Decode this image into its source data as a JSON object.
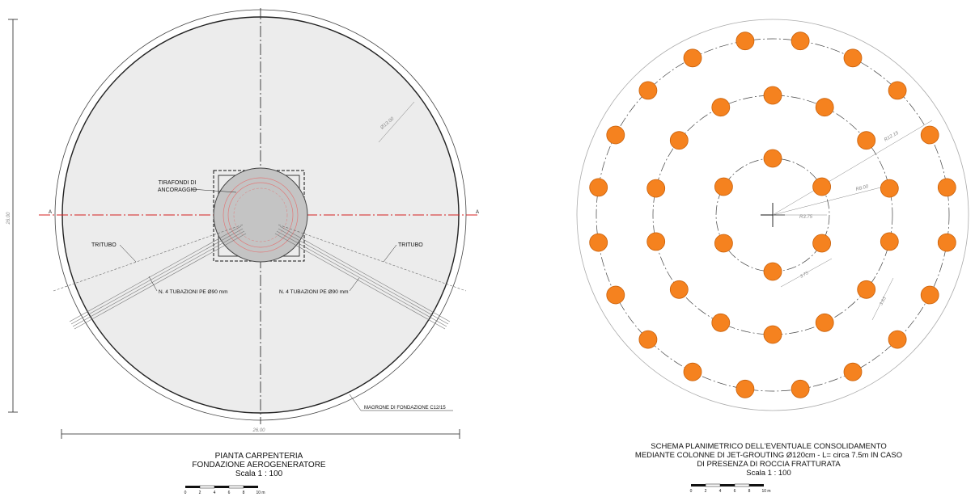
{
  "left_plan": {
    "overall_dimension_vertical": "26.00",
    "overall_dimension_horizontal": "26.00",
    "diameter_label": "Ø13.00",
    "anchor_label_line1": "TIRAFONDI DI",
    "anchor_label_line2": "ANCORAGGIO",
    "tritubo_left": "TRITUBO",
    "tritubo_right": "TRITUBO",
    "pipes_left": "N. 4 TUBAZIONI PE Ø90 mm",
    "pipes_right": "N. 4 TUBAZIONI PE Ø90 mm",
    "magrone_label": "MAGRONE DI FONDAZIONE C12/15",
    "section_mark_left": "A",
    "section_mark_right": "A",
    "caption_line1": "PIANTA CARPENTERIA",
    "caption_line2": "FONDAZIONE AEROGENERATORE",
    "scale_label": "Scala  1 : 100",
    "scalebar_ticks": [
      "0",
      "2",
      "4",
      "6",
      "8",
      "10 m"
    ]
  },
  "right_plan": {
    "radius_outer": "R12.15",
    "radius_mid": "R8.00",
    "radius_inner": "R3.75",
    "spacing_inner": "3.75",
    "spacing_outer": "3.63",
    "caption_line1": "SCHEMA PLANIMETRICO DELL'EVENTUALE CONSOLIDAMENTO",
    "caption_line2": "MEDIANTE COLONNE DI JET-GROUTING Ø120cm - L= circa 7.5m IN CASO",
    "caption_line3": "DI PRESENZA DI ROCCIA FRATTURATA",
    "scale_label": "Scala  1 : 100",
    "scalebar_ticks": [
      "0",
      "2",
      "4",
      "6",
      "8",
      "10 m"
    ],
    "colors": {
      "column_fill": "#f5821f",
      "column_stroke": "#c8600a"
    }
  }
}
